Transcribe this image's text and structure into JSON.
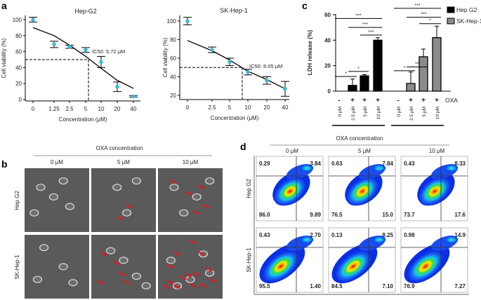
{
  "panel_labels": {
    "a": "a",
    "b": "b",
    "c": "c",
    "d": "d"
  },
  "chart_data": [
    {
      "type": "scatter",
      "id": "a1",
      "title": "Hep-G2",
      "xlabel": "Concentration (μM)",
      "ylabel": "Cell viability (%)",
      "categories": [
        "0",
        "1.25",
        "2.5",
        "5",
        "10",
        "20",
        "40"
      ],
      "values": [
        100,
        69,
        66,
        62,
        47,
        16,
        4
      ],
      "errors": [
        3,
        4,
        2,
        3,
        7,
        6,
        1
      ],
      "fit": [
        90,
        80,
        68,
        54,
        39,
        24,
        14
      ],
      "yticks": [
        "0",
        "20",
        "40",
        "60",
        "80",
        "100"
      ],
      "ylim": [
        0,
        100
      ],
      "ic50_label": "IC50: 5.72 μM",
      "ic50": 5.72,
      "point_color": "#3fb8d8"
    },
    {
      "type": "scatter",
      "id": "a2",
      "title": "SK-Hep-1",
      "xlabel": "Concentration (μM)",
      "ylabel": "Cell viability (%)",
      "categories": [
        "0",
        "2.5",
        "5",
        "10",
        "20",
        "40"
      ],
      "values": [
        100,
        69,
        56,
        45,
        36,
        27
      ],
      "errors": [
        4,
        3,
        4,
        3,
        4,
        8
      ],
      "fit": [
        79,
        68,
        58,
        46,
        37,
        27
      ],
      "yticks": [
        "20",
        "40",
        "60",
        "80",
        "100"
      ],
      "ylim": [
        20,
        100
      ],
      "ic50_label": "IC50: 8.05 μM",
      "ic50": 8.05,
      "point_color": "#3fb8d8"
    },
    {
      "type": "bar",
      "id": "c",
      "ylabel": "LDH release (%)",
      "ylim": [
        0,
        60
      ],
      "yticks": [
        "0",
        "20",
        "40",
        "60"
      ],
      "categories": [
        "0 μM",
        "2.5 μM",
        "5 μM",
        "10 μM"
      ],
      "oxa_signs": [
        "-",
        "+",
        "+",
        "+"
      ],
      "oxa_label": "OXA",
      "series": [
        {
          "name": "Hep G2",
          "color": "#000000",
          "values": [
            0,
            4.5,
            12,
            40
          ],
          "errors": [
            0,
            5,
            1,
            2
          ],
          "sig": [
            {
              "from": 0,
              "to": 3,
              "y": 57,
              "mark": "***"
            },
            {
              "from": 1,
              "to": 3,
              "y": 50,
              "mark": "***"
            },
            {
              "from": 2,
              "to": 3,
              "y": 44,
              "mark": "***"
            },
            {
              "from": 0,
              "to": 1,
              "y": 11.5,
              "mark": "*"
            },
            {
              "from": 1,
              "to": 2,
              "y": 15.5,
              "mark": "*"
            }
          ]
        },
        {
          "name": "SK-Hep-1",
          "color": "#8c8c8c",
          "values": [
            0,
            6,
            27,
            42
          ],
          "errors": [
            0,
            9,
            6,
            9
          ],
          "sig": [
            {
              "from": 0,
              "to": 3,
              "y": 65,
              "mark": "***"
            },
            {
              "from": 1,
              "to": 3,
              "y": 58,
              "mark": "***"
            },
            {
              "from": 2,
              "to": 3,
              "y": 53,
              "mark": "*"
            },
            {
              "from": 1,
              "to": 2,
              "y": 19,
              "mark": "**"
            },
            {
              "from": 0,
              "to": 1,
              "y": 16,
              "mark": "*"
            }
          ]
        }
      ]
    },
    {
      "type": "table",
      "id": "d",
      "header": "OXA concentration",
      "columns": [
        "0 μM",
        "5 μM",
        "10 μM"
      ],
      "rows": [
        {
          "name": "Hep G2",
          "quadrants": [
            [
              "0.29",
              "3.84",
              "86.0",
              "9.89"
            ],
            [
              "0.63",
              "7.84",
              "76.5",
              "15.0"
            ],
            [
              "0.43",
              "8.33",
              "73.7",
              "17.6"
            ]
          ]
        },
        {
          "name": "SK-Hep-1",
          "quadrants": [
            [
              "0.43",
              "2.70",
              "95.5",
              "1.40"
            ],
            [
              "0.13",
              "8.25",
              "84.5",
              "7.10"
            ],
            [
              "0.98",
              "14.9",
              "76.9",
              "7.27"
            ]
          ]
        }
      ]
    }
  ],
  "panel_b": {
    "header": "OXA concentration",
    "columns": [
      "0 μM",
      "5 μM",
      "10 μM"
    ],
    "rows": [
      "Hep G2",
      "SK-Hep-1"
    ],
    "arrow_color": "#e8141b"
  }
}
